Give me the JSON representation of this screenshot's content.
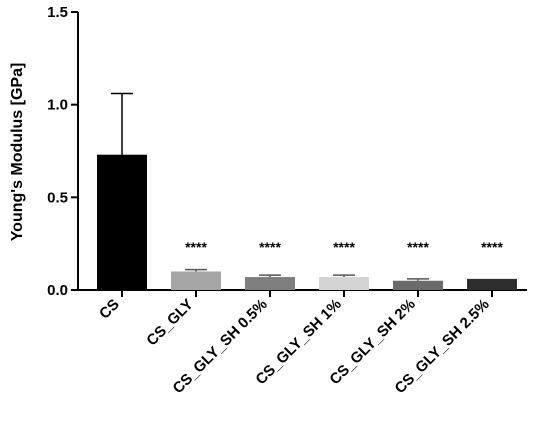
{
  "chart_data": {
    "type": "bar",
    "title": "",
    "xlabel": "",
    "ylabel": "Young's Modulus [GPa]",
    "ylim": [
      0,
      1.5
    ],
    "yticks": [
      0.0,
      0.5,
      1.0,
      1.5
    ],
    "ytick_labels": [
      "0.0",
      "0.5",
      "1.0",
      "1.5"
    ],
    "grid": false,
    "categories": [
      "CS",
      "CS_GLY",
      "CS_GLY_SH 0.5%",
      "CS_GLY_SH 1%",
      "CS_GLY_SH 2%",
      "CS_GLY_SH 2.5%"
    ],
    "values": [
      0.73,
      0.1,
      0.07,
      0.07,
      0.05,
      0.06
    ],
    "error_upper": [
      0.33,
      0.01,
      0.01,
      0.01,
      0.01,
      0.0
    ],
    "significance": [
      "",
      "****",
      "****",
      "****",
      "****",
      "****"
    ],
    "bar_colors": [
      "#000000",
      "#a6a6a6",
      "#7f7f7f",
      "#d4d4d4",
      "#6b6b6b",
      "#2e2e2e"
    ]
  }
}
